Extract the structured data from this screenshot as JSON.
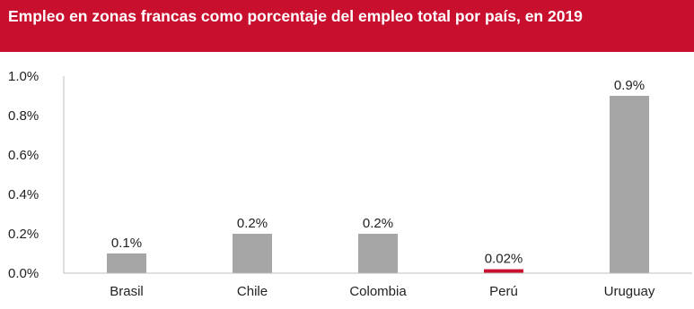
{
  "header": {
    "title": "Empleo en zonas francas como porcentaje del empleo total por país, en 2019",
    "background_color": "#c8102e",
    "text_color": "#ffffff"
  },
  "chart_data": {
    "type": "bar",
    "title": "Empleo en zonas francas como porcentaje del empleo total por país, en 2019",
    "xlabel": "",
    "ylabel": "",
    "categories": [
      "Brasil",
      "Chile",
      "Colombia",
      "Perú",
      "Uruguay"
    ],
    "values": [
      0.1,
      0.2,
      0.2,
      0.02,
      0.9
    ],
    "value_labels": [
      "0.1%",
      "0.2%",
      "0.2%",
      "0.02%",
      "0.9%"
    ],
    "bar_colors": [
      "#a6a6a6",
      "#a6a6a6",
      "#a6a6a6",
      "#c8102e",
      "#a6a6a6"
    ],
    "ylim": [
      0,
      1.0
    ],
    "yticks": [
      0.0,
      0.2,
      0.4,
      0.6,
      0.8,
      1.0
    ],
    "ytick_labels": [
      "0.0%",
      "0.2%",
      "0.4%",
      "0.6%",
      "0.8%",
      "1.0%"
    ],
    "grid": false,
    "legend": "none"
  }
}
